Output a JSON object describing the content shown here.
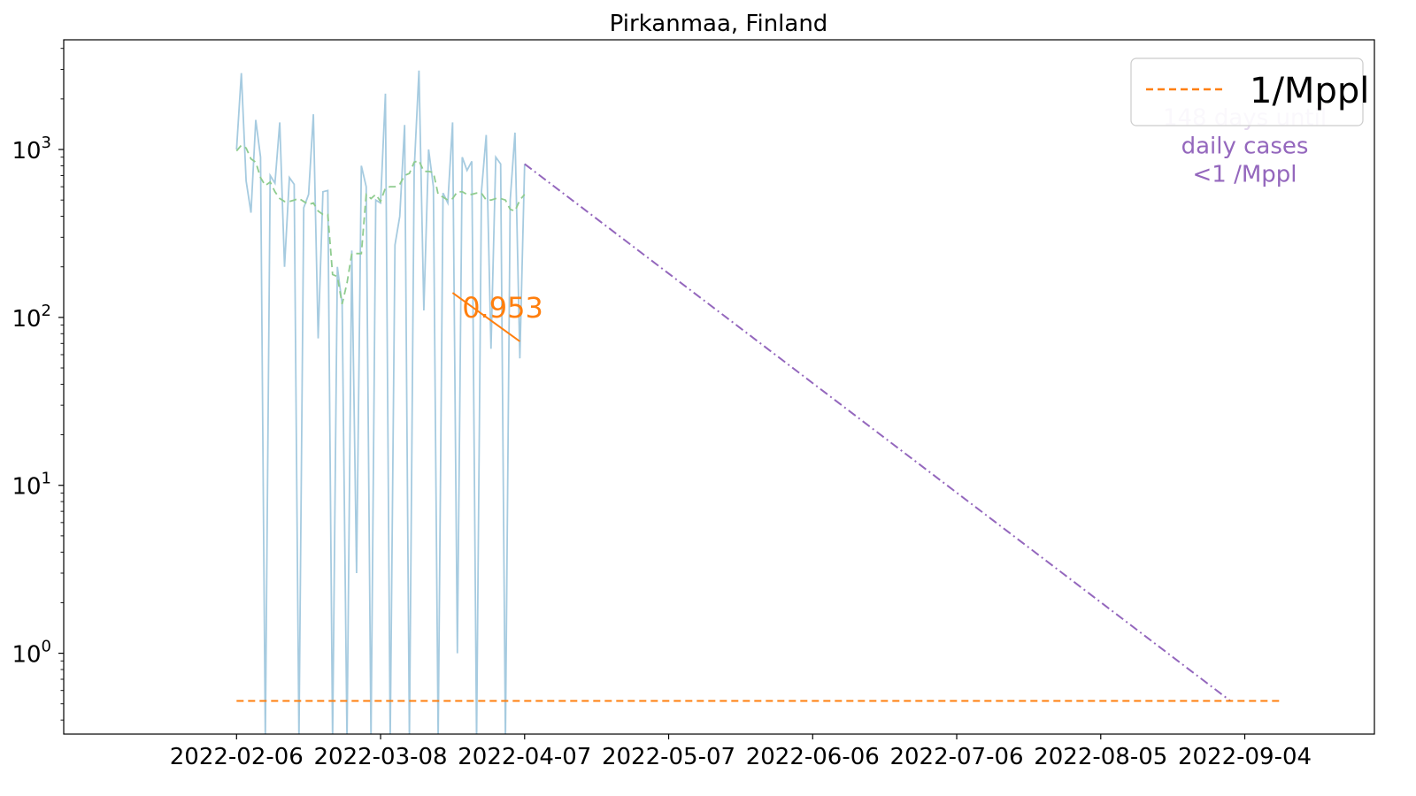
{
  "chart_data": {
    "type": "line",
    "title": "Pirkanmaa, Finland",
    "xlabel": "",
    "ylabel": "",
    "y_scale": "log",
    "ylim": [
      0.33,
      4500
    ],
    "xlim": [
      "2022-01-01",
      "2022-10-01"
    ],
    "y_ticks": [
      {
        "value": 1,
        "base": "10",
        "exp": "0"
      },
      {
        "value": 10,
        "base": "10",
        "exp": "1"
      },
      {
        "value": 100,
        "base": "10",
        "exp": "2"
      },
      {
        "value": 1000,
        "base": "10",
        "exp": "3"
      }
    ],
    "x_ticks": [
      "2022-02-06",
      "2022-03-08",
      "2022-04-07",
      "2022-05-07",
      "2022-06-06",
      "2022-07-06",
      "2022-08-05",
      "2022-09-04"
    ],
    "series": [
      {
        "key": "daily",
        "color": "#a6cbe0",
        "style": "solid",
        "points": [
          [
            "2022-02-06",
            1000
          ],
          [
            "2022-02-07",
            2850
          ],
          [
            "2022-02-08",
            650
          ],
          [
            "2022-02-09",
            420
          ],
          [
            "2022-02-10",
            1500
          ],
          [
            "2022-02-11",
            900
          ],
          [
            "2022-02-12",
            0.3
          ],
          [
            "2022-02-13",
            700
          ],
          [
            "2022-02-14",
            630
          ],
          [
            "2022-02-15",
            1450
          ],
          [
            "2022-02-16",
            200
          ],
          [
            "2022-02-17",
            680
          ],
          [
            "2022-02-18",
            620
          ],
          [
            "2022-02-19",
            0.3
          ],
          [
            "2022-02-20",
            450
          ],
          [
            "2022-02-21",
            540
          ],
          [
            "2022-02-22",
            1620
          ],
          [
            "2022-02-23",
            75
          ],
          [
            "2022-02-24",
            560
          ],
          [
            "2022-02-25",
            570
          ],
          [
            "2022-02-26",
            0.3
          ],
          [
            "2022-02-27",
            200
          ],
          [
            "2022-02-28",
            120
          ],
          [
            "2022-03-01",
            0.3
          ],
          [
            "2022-03-02",
            250
          ],
          [
            "2022-03-03",
            3
          ],
          [
            "2022-03-04",
            800
          ],
          [
            "2022-03-05",
            600
          ],
          [
            "2022-03-06",
            0.3
          ],
          [
            "2022-03-07",
            500
          ],
          [
            "2022-03-08",
            480
          ],
          [
            "2022-03-09",
            2150
          ],
          [
            "2022-03-10",
            0.3
          ],
          [
            "2022-03-11",
            270
          ],
          [
            "2022-03-12",
            400
          ],
          [
            "2022-03-13",
            1400
          ],
          [
            "2022-03-14",
            0.3
          ],
          [
            "2022-03-15",
            750
          ],
          [
            "2022-03-16",
            2950
          ],
          [
            "2022-03-17",
            110
          ],
          [
            "2022-03-18",
            1000
          ],
          [
            "2022-03-19",
            600
          ],
          [
            "2022-03-20",
            0.3
          ],
          [
            "2022-03-21",
            550
          ],
          [
            "2022-03-22",
            480
          ],
          [
            "2022-03-23",
            1450
          ],
          [
            "2022-03-24",
            1
          ],
          [
            "2022-03-25",
            900
          ],
          [
            "2022-03-26",
            750
          ],
          [
            "2022-03-27",
            850
          ],
          [
            "2022-03-28",
            0.3
          ],
          [
            "2022-03-29",
            560
          ],
          [
            "2022-03-30",
            1220
          ],
          [
            "2022-03-31",
            65
          ],
          [
            "2022-04-01",
            900
          ],
          [
            "2022-04-02",
            820
          ],
          [
            "2022-04-03",
            0.3
          ],
          [
            "2022-04-04",
            500
          ],
          [
            "2022-04-05",
            1260
          ],
          [
            "2022-04-06",
            57
          ],
          [
            "2022-04-07",
            820
          ]
        ]
      },
      {
        "key": "rolling_avg",
        "color": "#8fcc8f",
        "style": "dashed",
        "points": [
          [
            "2022-02-06",
            980
          ],
          [
            "2022-02-07",
            1060
          ],
          [
            "2022-02-08",
            1020
          ],
          [
            "2022-02-09",
            880
          ],
          [
            "2022-02-10",
            840
          ],
          [
            "2022-02-11",
            680
          ],
          [
            "2022-02-12",
            610
          ],
          [
            "2022-02-13",
            640
          ],
          [
            "2022-02-14",
            560
          ],
          [
            "2022-02-15",
            510
          ],
          [
            "2022-02-16",
            490
          ],
          [
            "2022-02-17",
            490
          ],
          [
            "2022-02-18",
            500
          ],
          [
            "2022-02-19",
            510
          ],
          [
            "2022-02-20",
            490
          ],
          [
            "2022-02-21",
            470
          ],
          [
            "2022-02-22",
            480
          ],
          [
            "2022-02-23",
            430
          ],
          [
            "2022-02-24",
            410
          ],
          [
            "2022-02-25",
            410
          ],
          [
            "2022-02-26",
            180
          ],
          [
            "2022-02-27",
            175
          ],
          [
            "2022-02-28",
            120
          ],
          [
            "2022-03-01",
            160
          ],
          [
            "2022-03-02",
            240
          ],
          [
            "2022-03-03",
            240
          ],
          [
            "2022-03-04",
            240
          ],
          [
            "2022-03-05",
            540
          ],
          [
            "2022-03-06",
            510
          ],
          [
            "2022-03-07",
            540
          ],
          [
            "2022-03-08",
            490
          ],
          [
            "2022-03-09",
            590
          ],
          [
            "2022-03-10",
            600
          ],
          [
            "2022-03-11",
            600
          ],
          [
            "2022-03-12",
            620
          ],
          [
            "2022-03-13",
            700
          ],
          [
            "2022-03-14",
            720
          ],
          [
            "2022-03-15",
            840
          ],
          [
            "2022-03-16",
            860
          ],
          [
            "2022-03-17",
            740
          ],
          [
            "2022-03-18",
            740
          ],
          [
            "2022-03-19",
            730
          ],
          [
            "2022-03-20",
            540
          ],
          [
            "2022-03-21",
            520
          ],
          [
            "2022-03-22",
            500
          ],
          [
            "2022-03-23",
            510
          ],
          [
            "2022-03-24",
            560
          ],
          [
            "2022-03-25",
            560
          ],
          [
            "2022-03-26",
            540
          ],
          [
            "2022-03-27",
            540
          ],
          [
            "2022-03-28",
            550
          ],
          [
            "2022-03-29",
            550
          ],
          [
            "2022-03-30",
            500
          ],
          [
            "2022-03-31",
            500
          ],
          [
            "2022-04-01",
            510
          ],
          [
            "2022-04-02",
            510
          ],
          [
            "2022-04-03",
            500
          ],
          [
            "2022-04-04",
            440
          ],
          [
            "2022-04-05",
            430
          ],
          [
            "2022-04-06",
            500
          ],
          [
            "2022-04-07",
            540
          ]
        ]
      },
      {
        "key": "trend",
        "color": "#ff7f0e",
        "style": "solid",
        "points": [
          [
            "2022-03-23",
            140
          ],
          [
            "2022-04-06",
            72
          ]
        ]
      },
      {
        "key": "projection",
        "color": "#9467bd",
        "style": "dashdot",
        "points": [
          [
            "2022-04-07",
            820
          ],
          [
            "2022-09-01",
            0.52
          ]
        ]
      },
      {
        "name": "1/Mppl",
        "key": "threshold",
        "color": "#ff7f0e",
        "style": "dashed",
        "points": [
          [
            "2022-02-06",
            0.52
          ],
          [
            "2022-09-12",
            0.52
          ]
        ]
      }
    ],
    "annotations": [
      {
        "text": "0.953",
        "x": "2022-04-01",
        "y": 100,
        "color": "#ff7f0e"
      },
      {
        "text": "148 days until\ndaily cases\n<1 /Mppl",
        "x": "2022-09-04",
        "y": 1400,
        "color": "#9467bd"
      }
    ],
    "legend": {
      "placement": "upper right",
      "entries": [
        "1/Mppl"
      ]
    },
    "grid": false
  }
}
